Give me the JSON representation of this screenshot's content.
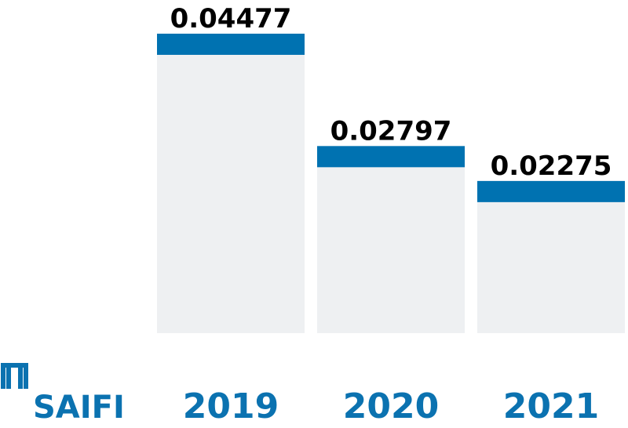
{
  "chart_data": {
    "type": "bar",
    "axis_label": "SAIFI",
    "categories": [
      "2019",
      "2020",
      "2021"
    ],
    "values": [
      0.04477,
      0.02797,
      0.02275
    ],
    "color": "#0072b1",
    "background_color": "#eef0f2",
    "ylim": [
      0,
      0.045
    ]
  }
}
